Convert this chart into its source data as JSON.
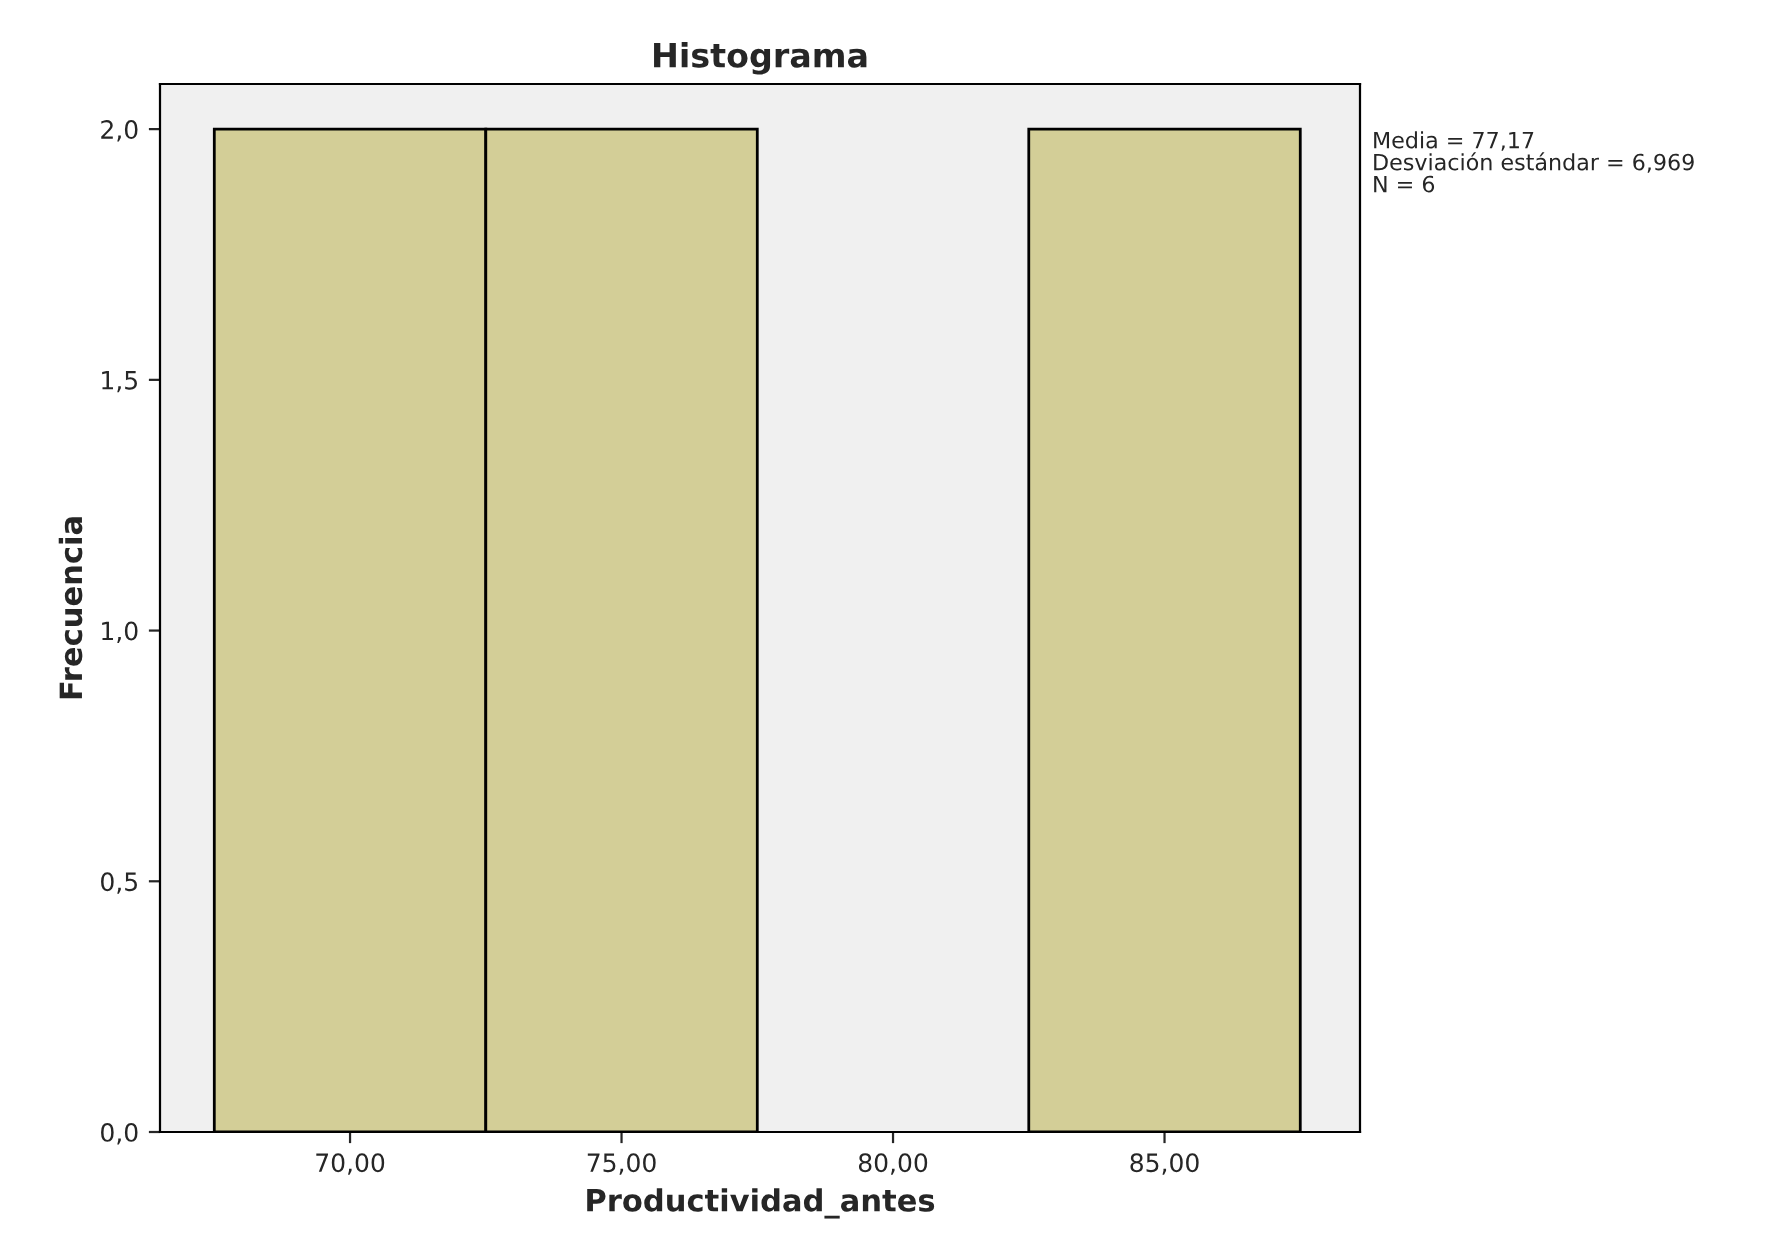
{
  "chart_data": {
    "type": "histogram",
    "title": "Histograma",
    "xlabel": "Productividad_antes",
    "ylabel": "Frecuencia",
    "bins": [
      67.5,
      72.5,
      77.5,
      82.5,
      87.5
    ],
    "values": [
      2,
      2,
      0,
      2
    ],
    "color": "#d3ce97",
    "xlim": [
      66.5,
      88.6
    ],
    "ylim": [
      0,
      2.09
    ],
    "xticks": [
      {
        "value": 70,
        "label": "70,00"
      },
      {
        "value": 75,
        "label": "75,00"
      },
      {
        "value": 80,
        "label": "80,00"
      },
      {
        "value": 85,
        "label": "85,00"
      }
    ],
    "yticks": [
      {
        "value": 0,
        "label": "0,0"
      },
      {
        "value": 0.5,
        "label": "0,5"
      },
      {
        "value": 1,
        "label": "1,0"
      },
      {
        "value": 1.5,
        "label": "1,5"
      },
      {
        "value": 2,
        "label": "2,0"
      }
    ],
    "annotations": [
      "Media = 77,17",
      "Desviación estándar = 6,969",
      "N = 6"
    ]
  }
}
